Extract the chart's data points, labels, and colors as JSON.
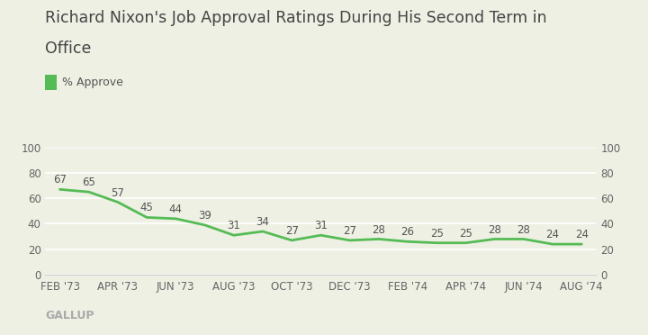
{
  "title_line1": "Richard Nixon's Job Approval Ratings During His Second Term in",
  "title_line2": "Office",
  "legend_label": "% Approve",
  "source_label": "GALLUP",
  "x_labels": [
    "FEB '73",
    "APR '73",
    "JUN '73",
    "AUG '73",
    "OCT '73",
    "DEC '73",
    "FEB '74",
    "APR '74",
    "JUN '74",
    "AUG '74"
  ],
  "x_tick_positions": [
    0,
    2,
    4,
    6,
    8,
    10,
    12,
    14,
    16,
    18
  ],
  "data_x": [
    0,
    1,
    2,
    3,
    4,
    5,
    6,
    7,
    8,
    9,
    10,
    11,
    12,
    13,
    14,
    15,
    16,
    17,
    18
  ],
  "data_y": [
    67,
    65,
    57,
    45,
    44,
    39,
    31,
    34,
    27,
    31,
    27,
    28,
    26,
    25,
    25,
    28,
    28,
    24,
    24
  ],
  "data_labels": [
    67,
    65,
    57,
    45,
    44,
    39,
    31,
    34,
    27,
    31,
    27,
    28,
    26,
    25,
    25,
    28,
    28,
    24,
    24
  ],
  "line_color": "#55bb55",
  "background_color": "#eef0e4",
  "grid_color": "#ffffff",
  "title_color": "#444444",
  "tick_color": "#666666",
  "label_color": "#555555",
  "gallup_color": "#aaaaaa",
  "title_fontsize": 12.5,
  "tick_fontsize": 8.5,
  "data_label_fontsize": 8.5,
  "legend_fontsize": 9,
  "gallup_fontsize": 9,
  "ylim": [
    0,
    100
  ],
  "yticks": [
    0,
    20,
    40,
    60,
    80,
    100
  ],
  "xlim": [
    -0.5,
    18.5
  ]
}
